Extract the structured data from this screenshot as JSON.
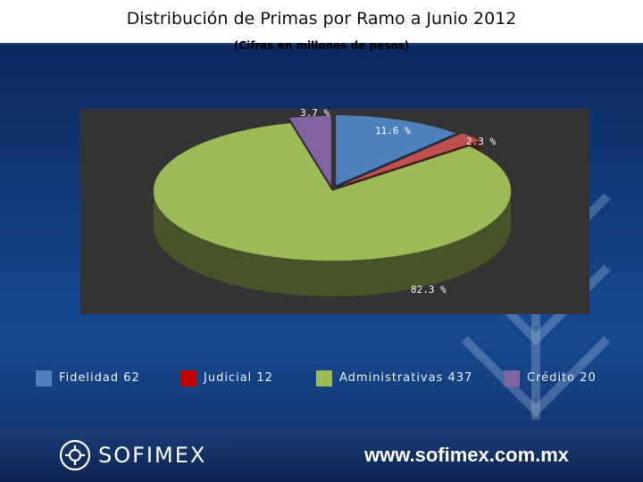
{
  "title": "Distribución de Primas por Ramo a Junio 2012",
  "subtitle": "(Cifras en millones de pesos)",
  "colors": {
    "fidelidad": "#4f81bd",
    "judicial": "#c0504d",
    "administrativas": "#9bbb59",
    "credito": "#8064a2",
    "plot_bg": "#333333"
  },
  "chart_data": {
    "type": "pie",
    "title": "Distribución de Primas por Ramo a Junio 2012",
    "subtitle": "(Cifras en millones de pesos)",
    "legend_position": "bottom",
    "slices": [
      {
        "name": "Fidelidad",
        "value": 62,
        "percent_label": "11.6 %",
        "color": "#4f81bd"
      },
      {
        "name": "Judicial",
        "value": 12,
        "percent_label": "2.3 %",
        "color": "#c0504d"
      },
      {
        "name": "Administrativas",
        "value": 437,
        "percent_label": "82.3 %",
        "color": "#9bbb59"
      },
      {
        "name": "Crédito",
        "value": 20,
        "percent_label": "3.7 %",
        "color": "#8064a2"
      }
    ]
  },
  "legend": [
    {
      "label": "Fidelidad 62",
      "icon": "swatch-fidelidad"
    },
    {
      "label": "Judicial 12",
      "icon": "swatch-judicial"
    },
    {
      "label": "Administrativas 437",
      "icon": "swatch-administrativas"
    },
    {
      "label": "Crédito 20",
      "icon": "swatch-credito"
    }
  ],
  "footer": {
    "brand": "SOFIMEX",
    "url": "www.sofimex.com.mx"
  }
}
